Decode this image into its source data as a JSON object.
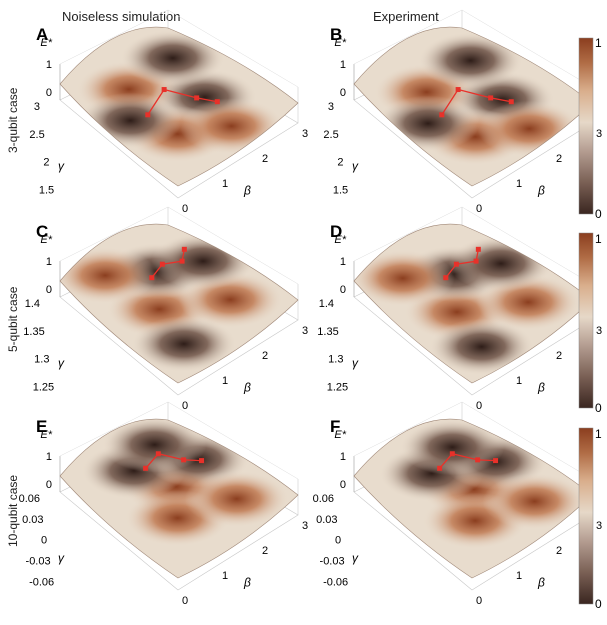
{
  "column_titles": [
    "Noiseless simulation",
    "Experiment"
  ],
  "panel_letters": [
    "A",
    "B",
    "C",
    "D",
    "E",
    "F"
  ],
  "row_labels": [
    "3-qubit case",
    "5-qubit case",
    "10-qubit case"
  ],
  "zlabel": "E*",
  "gamma_label": "γ",
  "beta_label": "β",
  "rows": [
    {
      "gamma_ticks": [
        "3",
        "2.5",
        "2",
        "1.5"
      ],
      "beta_ticks": [
        "0",
        "1",
        "2",
        "3"
      ],
      "z_ticks": [
        "1",
        "0"
      ]
    },
    {
      "gamma_ticks": [
        "1.4",
        "1.35",
        "1.3",
        "1.25"
      ],
      "beta_ticks": [
        "0",
        "1",
        "2",
        "3"
      ],
      "z_ticks": [
        "1",
        "0"
      ]
    },
    {
      "gamma_ticks": [
        "0.06",
        "0.03",
        "0",
        "-0.03",
        "-0.06"
      ],
      "beta_ticks": [
        "0",
        "1",
        "2",
        "3"
      ],
      "z_ticks": [
        "1",
        "0"
      ]
    }
  ],
  "colorbar": {
    "max_label": "1",
    "min_label": "0",
    "colors": [
      "#3a2620",
      "#7a6055",
      "#b59e92",
      "#e6d8c8",
      "#d9ae8c",
      "#b06c45",
      "#8b3e1f"
    ]
  },
  "chart_data": {
    "type": "surface",
    "title": "",
    "xlabel": "β",
    "ylabel": "γ",
    "zlabel": "E*",
    "zlim": [
      0,
      1
    ],
    "panels": [
      {
        "letter": "A",
        "case": "3-qubit case",
        "source": "Noiseless simulation",
        "beta_range": [
          0,
          3.14
        ],
        "gamma_range": [
          1.5,
          3
        ]
      },
      {
        "letter": "B",
        "case": "3-qubit case",
        "source": "Experiment",
        "beta_range": [
          0,
          3.14
        ],
        "gamma_range": [
          1.5,
          3
        ]
      },
      {
        "letter": "C",
        "case": "5-qubit case",
        "source": "Noiseless simulation",
        "beta_range": [
          0,
          3.14
        ],
        "gamma_range": [
          1.25,
          1.4
        ]
      },
      {
        "letter": "D",
        "case": "5-qubit case",
        "source": "Experiment",
        "beta_range": [
          0,
          3.14
        ],
        "gamma_range": [
          1.25,
          1.4
        ]
      },
      {
        "letter": "E",
        "case": "10-qubit case",
        "source": "Noiseless simulation",
        "beta_range": [
          0,
          3.14
        ],
        "gamma_range": [
          -0.06,
          0.06
        ]
      },
      {
        "letter": "F",
        "case": "10-qubit case",
        "source": "Experiment",
        "beta_range": [
          0,
          3.14
        ],
        "gamma_range": [
          -0.06,
          0.06
        ]
      }
    ]
  }
}
